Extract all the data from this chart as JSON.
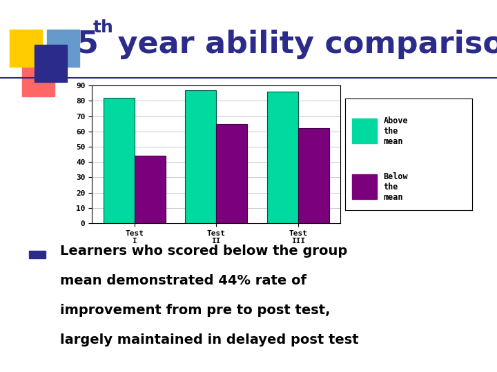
{
  "title_color": "#2B2B8B",
  "background_color": "#FFFFFF",
  "categories": [
    "Test\nI",
    "Test\nII",
    "Test\nIII"
  ],
  "above_mean": [
    82,
    87,
    86
  ],
  "below_mean": [
    44,
    65,
    62
  ],
  "above_color": "#00D9A0",
  "below_color": "#7B007B",
  "ylim": [
    0,
    90
  ],
  "yticks": [
    0,
    10,
    20,
    30,
    40,
    50,
    60,
    70,
    80,
    90
  ],
  "legend_above": "Above\nthe\nmean",
  "legend_below": "Below\nthe\nmean",
  "bullet_color": "#2B2B8B",
  "deco_yellow": "#FFCC00",
  "deco_red": "#FF6666",
  "deco_blue_dark": "#2B2B8B",
  "deco_blue_light": "#6699CC",
  "text_lines": [
    "Learners who scored below the group",
    "mean demonstrated 44% rate of",
    "improvement from pre to post test,",
    "largely maintained in delayed post test"
  ]
}
